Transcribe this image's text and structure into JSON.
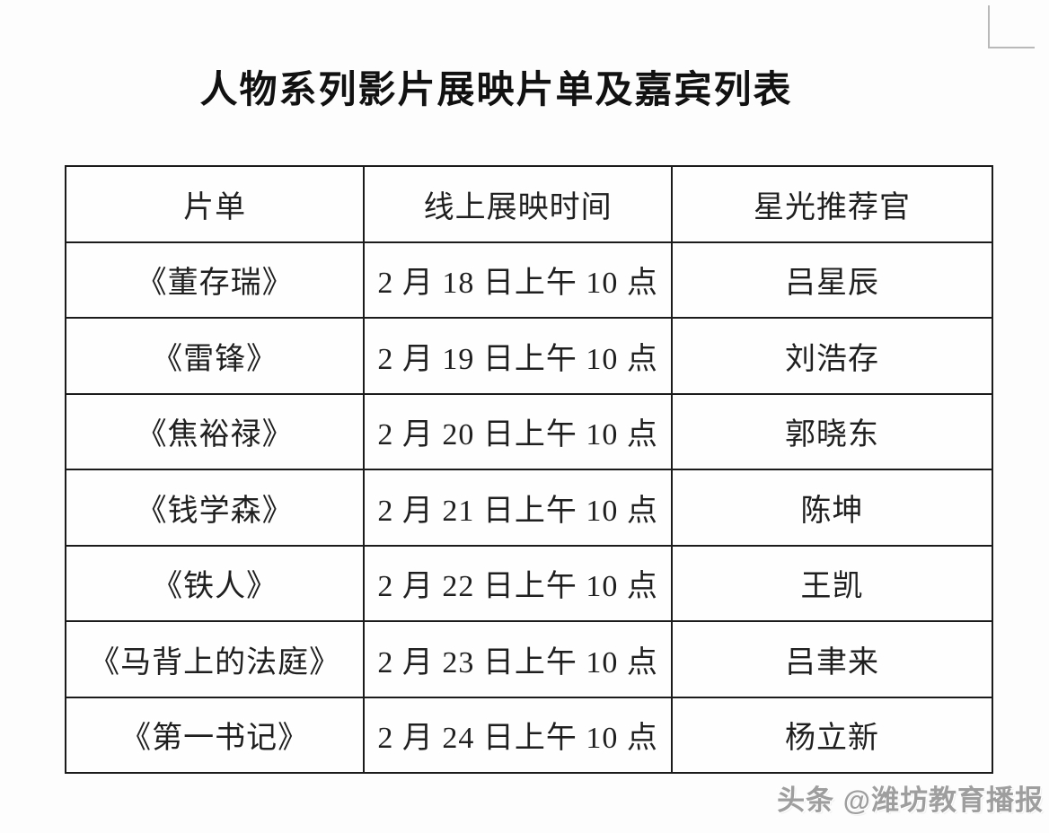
{
  "page": {
    "title": "人物系列影片展映片单及嘉宾列表",
    "watermark": "头条 @潍坊教育播报"
  },
  "table": {
    "headers": [
      "片单",
      "线上展映时间",
      "星光推荐官"
    ],
    "rows": [
      {
        "film": "《董存瑞》",
        "time": "2 月 18 日上午 10 点",
        "guest": "吕星辰"
      },
      {
        "film": "《雷锋》",
        "time": "2 月 19 日上午 10 点",
        "guest": "刘浩存"
      },
      {
        "film": "《焦裕禄》",
        "time": "2 月 20 日上午 10 点",
        "guest": "郭晓东"
      },
      {
        "film": "《钱学森》",
        "time": "2 月 21 日上午 10 点",
        "guest": "陈坤"
      },
      {
        "film": "《铁人》",
        "time": "2 月 22 日上午 10 点",
        "guest": "王凯"
      },
      {
        "film": "《马背上的法庭》",
        "time": "2 月 23 日上午 10 点",
        "guest": "吕聿来"
      },
      {
        "film": "《第一书记》",
        "time": "2 月 24 日上午 10 点",
        "guest": "杨立新"
      }
    ]
  }
}
